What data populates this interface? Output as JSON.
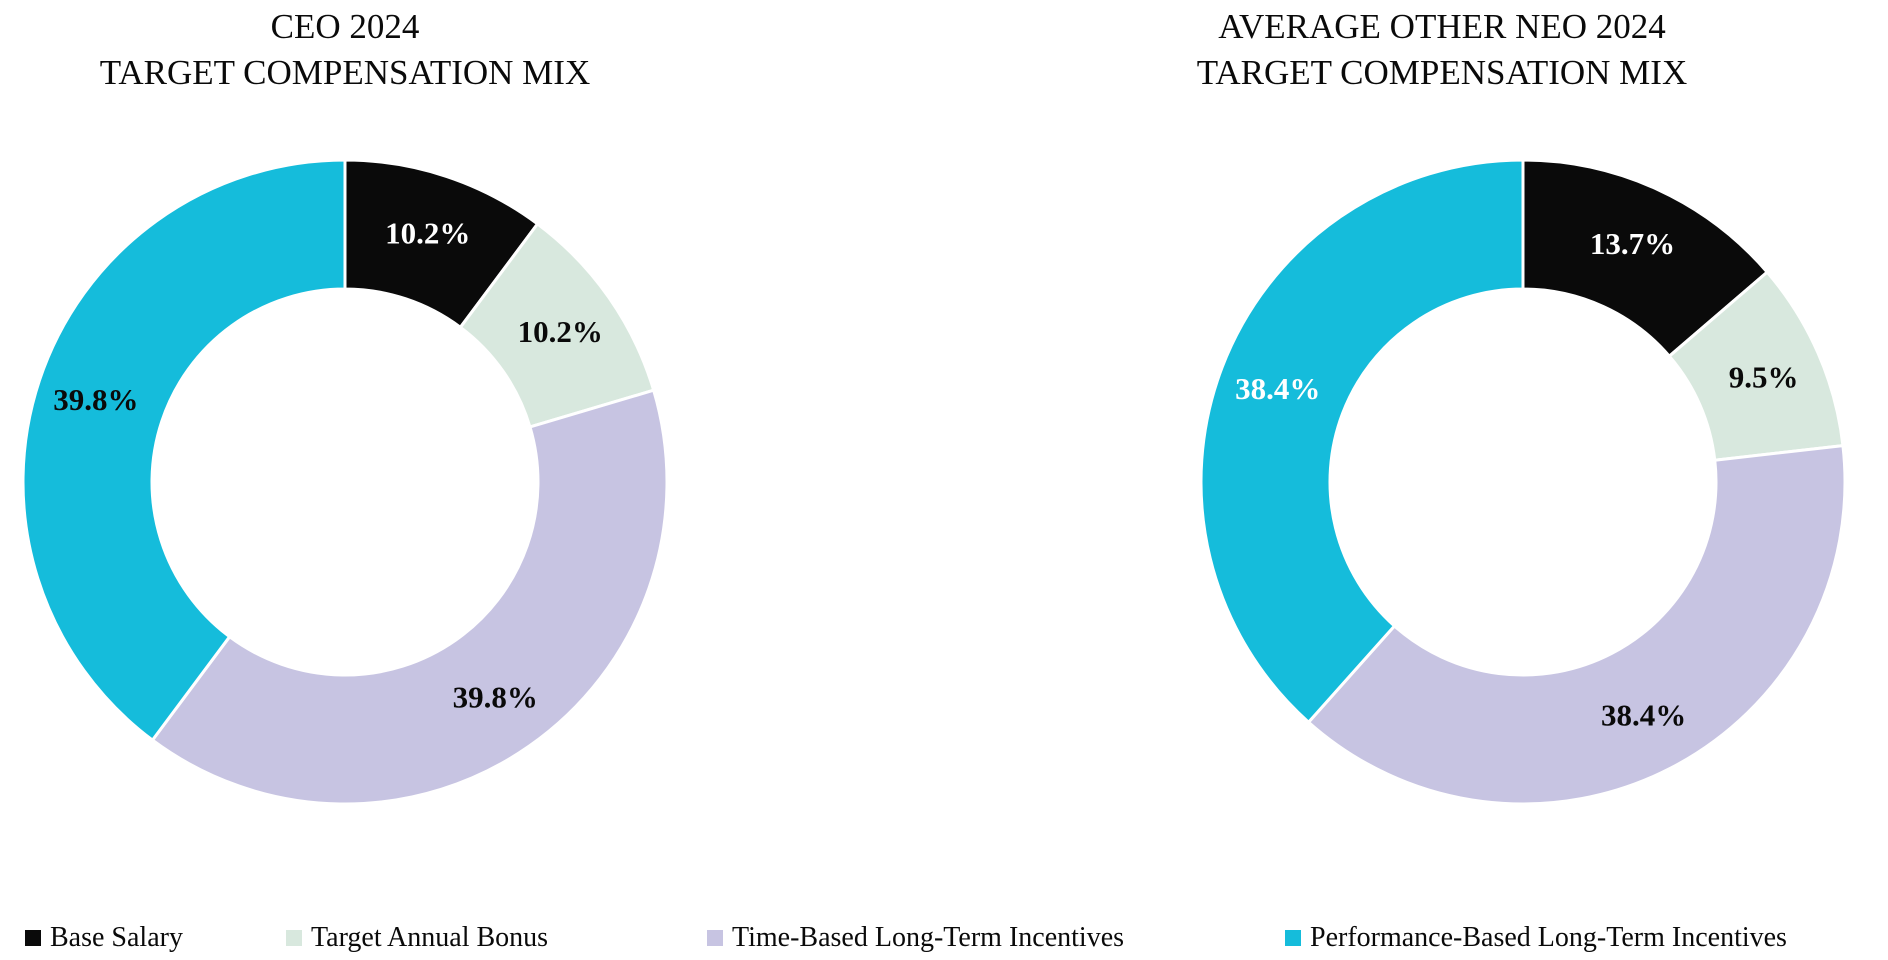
{
  "chart_data": [
    {
      "type": "pie",
      "subtype": "donut",
      "title_lines": [
        "CEO 2024",
        "TARGET COMPENSATION MIX"
      ],
      "categories": [
        "Base Salary",
        "Target Annual Bonus",
        "Time-Based Long-Term Incentives",
        "Performance-Based Long-Term Incentives"
      ],
      "values": [
        10.2,
        10.2,
        39.8,
        39.8
      ],
      "data_labels": [
        "10.2%",
        "10.2%",
        "39.8%",
        "39.8%"
      ],
      "slice_colors": [
        "#0a0a0a",
        "#d8e8de",
        "#c7c4e2",
        "#15bcdb"
      ],
      "data_label_colors": [
        "#ffffff",
        "#0a0a0a",
        "#0a0a0a",
        "#0a0a0a"
      ],
      "start_angle_deg": 0,
      "direction": "clockwise",
      "donut_hole_ratio": 0.6,
      "legend_position": "bottom"
    },
    {
      "type": "pie",
      "subtype": "donut",
      "title_lines": [
        "AVERAGE OTHER NEO 2024",
        "TARGET COMPENSATION MIX"
      ],
      "categories": [
        "Base Salary",
        "Target Annual Bonus",
        "Time-Based Long-Term Incentives",
        "Performance-Based Long-Term Incentives"
      ],
      "values": [
        13.7,
        9.5,
        38.4,
        38.4
      ],
      "data_labels": [
        "13.7%",
        "9.5%",
        "38.4%",
        "38.4%"
      ],
      "slice_colors": [
        "#0a0a0a",
        "#d8e8de",
        "#c7c4e2",
        "#15bcdb"
      ],
      "data_label_colors": [
        "#ffffff",
        "#0a0a0a",
        "#0a0a0a",
        "#ffffff"
      ],
      "start_angle_deg": 0,
      "direction": "clockwise",
      "donut_hole_ratio": 0.6,
      "legend_position": "bottom"
    }
  ],
  "legend": {
    "items": [
      {
        "label": "Base Salary",
        "color": "#0a0a0a"
      },
      {
        "label": "Target Annual Bonus",
        "color": "#d8e8de"
      },
      {
        "label": "Time-Based Long-Term Incentives",
        "color": "#c7c4e2"
      },
      {
        "label": "Performance-Based Long-Term Incentives",
        "color": "#15bcdb"
      }
    ]
  }
}
